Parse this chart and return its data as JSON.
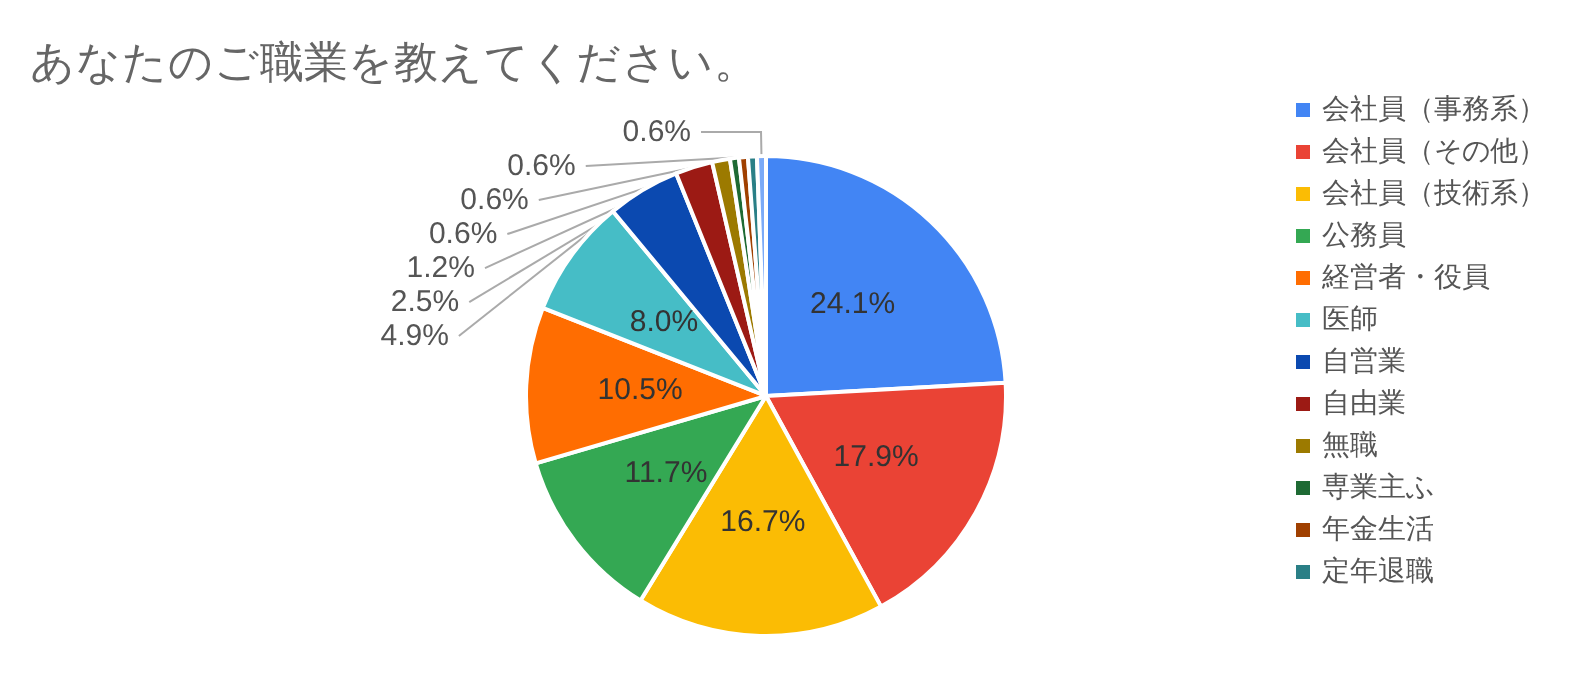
{
  "chart_data": {
    "type": "pie",
    "title": "あなたのご職業を教えてください。",
    "categories": [
      "会社員（事務系）",
      "会社員（その他）",
      "会社員（技術系）",
      "公務員",
      "経営者・役員",
      "医師",
      "自営業",
      "自由業",
      "無職",
      "専業主ふ",
      "年金生活",
      "定年退職",
      null
    ],
    "values": [
      24.1,
      17.9,
      16.7,
      11.7,
      10.5,
      8.0,
      4.9,
      2.5,
      1.2,
      0.6,
      0.6,
      0.6,
      0.6
    ],
    "value_labels": [
      "24.1%",
      "17.9%",
      "16.7%",
      "11.7%",
      "10.5%",
      "8.0%",
      "4.9%",
      "2.5%",
      "1.2%",
      "0.6%",
      "0.6%",
      "0.6%",
      "0.6%"
    ],
    "colors": [
      "#4285f4",
      "#ea4335",
      "#fbbc04",
      "#34a853",
      "#ff6d01",
      "#46bdc6",
      "#0b49b0",
      "#9c1a14",
      "#9c7a00",
      "#1e6a34",
      "#a04000",
      "#2a7f86",
      "#7baaf7"
    ],
    "legend": "right"
  }
}
